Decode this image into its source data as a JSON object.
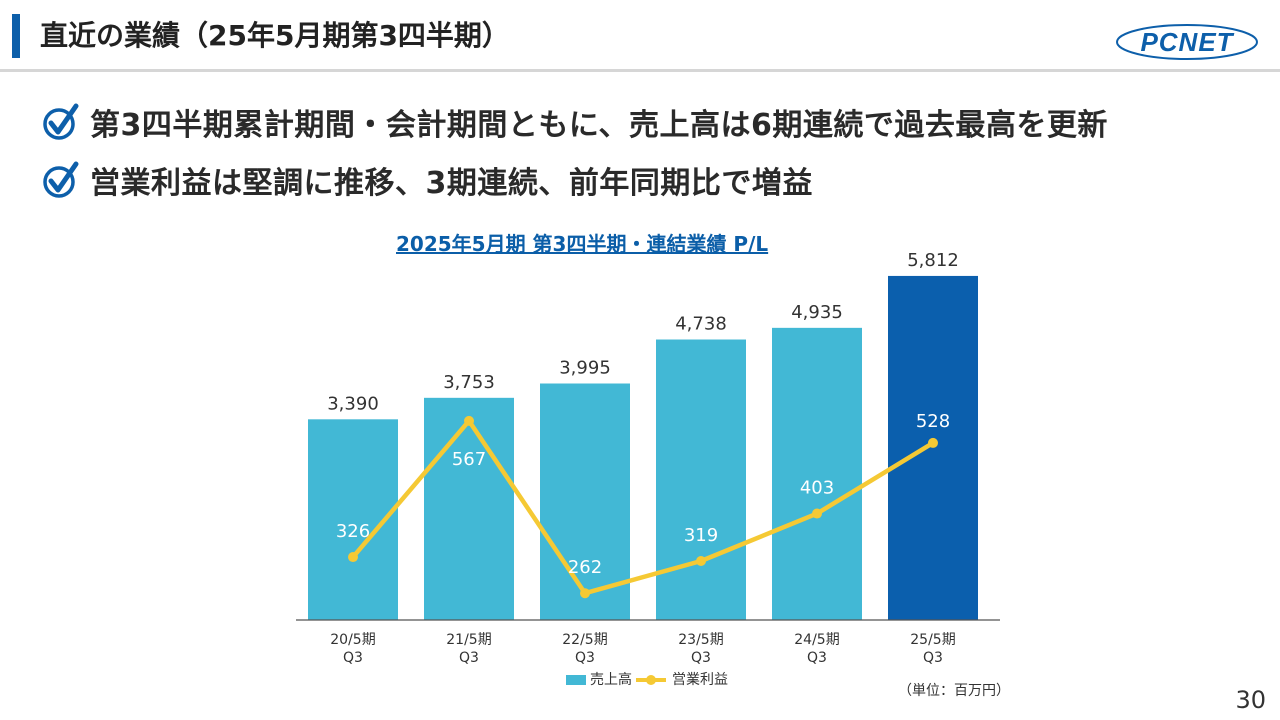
{
  "header": {
    "title": "直近の業績（25年5月期第3四半期）",
    "logo_text": "PCNET"
  },
  "bullets": [
    "第3四半期累計期間・会計期間ともに、売上高は6期連続で過去最高を更新",
    "営業利益は堅調に推移、3期連続、前年同期比で増益"
  ],
  "colors": {
    "accent": "#0d5faa",
    "bar": "#42b8d5",
    "bar_highlight": "#0b5fad",
    "line": "#f5c934"
  },
  "chart_data": {
    "type": "bar",
    "title": "2025年5月期 第3四半期・連結業績 P/L",
    "categories": [
      [
        "20/5期",
        "Q3"
      ],
      [
        "21/5期",
        "Q3"
      ],
      [
        "22/5期",
        "Q3"
      ],
      [
        "23/5期",
        "Q3"
      ],
      [
        "24/5期",
        "Q3"
      ],
      [
        "25/5期",
        "Q3"
      ]
    ],
    "series": [
      {
        "name": "売上高",
        "type": "bar",
        "values": [
          3390,
          3753,
          3995,
          4738,
          4935,
          5812
        ],
        "labels": [
          "3,390",
          "3,753",
          "3,995",
          "4,738",
          "4,935",
          "5,812"
        ]
      },
      {
        "name": "営業利益",
        "type": "line",
        "values": [
          326,
          567,
          262,
          319,
          403,
          528
        ],
        "labels": [
          "326",
          "567",
          "262",
          "319",
          "403",
          "528"
        ]
      }
    ],
    "highlight_index": 5,
    "legend_position": "bottom",
    "unit_label": "（単位：百万円）",
    "grid": false
  },
  "page_number": "30"
}
